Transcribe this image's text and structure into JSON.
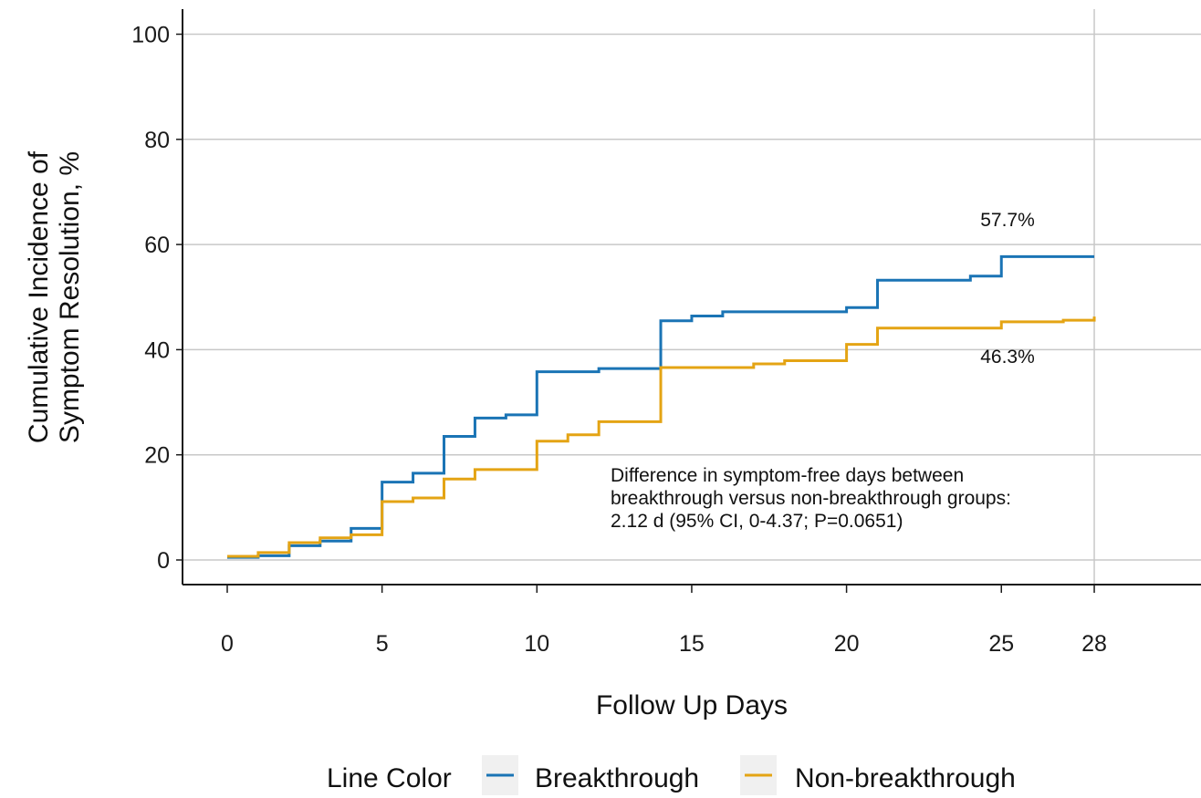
{
  "chart_data": {
    "type": "line",
    "step": true,
    "xlabel": "Follow Up Days",
    "ylabel_lines": [
      "Cumulative Incidence of",
      "Symptom Resolution, %"
    ],
    "xlim": [
      0,
      28
    ],
    "ylim": [
      0,
      100
    ],
    "xticks": [
      0,
      5,
      10,
      15,
      20,
      25,
      28
    ],
    "yticks": [
      0,
      20,
      40,
      60,
      80,
      100
    ],
    "grid": true,
    "colors": {
      "breakthrough": "#1a74b5",
      "non_breakthrough": "#e4a414",
      "grid": "#c8c8c8",
      "axis": "#1a1a1a"
    },
    "series": [
      {
        "name": "Breakthrough",
        "x": [
          0,
          1,
          2,
          3,
          4,
          5,
          6,
          7,
          8,
          9,
          10,
          12,
          14,
          15,
          16,
          20,
          21,
          24,
          25,
          28
        ],
        "y": [
          0.5,
          0.8,
          2.7,
          3.6,
          6.0,
          14.8,
          16.5,
          23.5,
          27.0,
          27.6,
          35.8,
          36.4,
          45.5,
          46.4,
          47.2,
          48.0,
          53.2,
          54.0,
          57.7,
          57.7
        ]
      },
      {
        "name": "Non-breakthrough",
        "x": [
          0,
          1,
          2,
          3,
          4,
          5,
          6,
          7,
          8,
          10,
          11,
          12,
          14,
          17,
          18,
          20,
          21,
          25,
          27,
          28
        ],
        "y": [
          0.7,
          1.4,
          3.3,
          4.2,
          4.8,
          11.1,
          11.8,
          15.4,
          17.2,
          22.6,
          23.8,
          26.3,
          36.6,
          37.3,
          37.9,
          41.0,
          44.1,
          45.3,
          45.6,
          46.3
        ]
      }
    ],
    "end_labels": [
      "57.7%",
      "46.3%"
    ],
    "annotation_lines": [
      "Difference in symptom-free days between",
      "breakthrough versus non-breakthrough groups:",
      "2.12 d (95% CI, 0-4.37; P=0.0651)"
    ],
    "legend": {
      "title": "Line Color",
      "position": "bottom",
      "items": [
        "Breakthrough",
        "Non-breakthrough"
      ]
    }
  }
}
